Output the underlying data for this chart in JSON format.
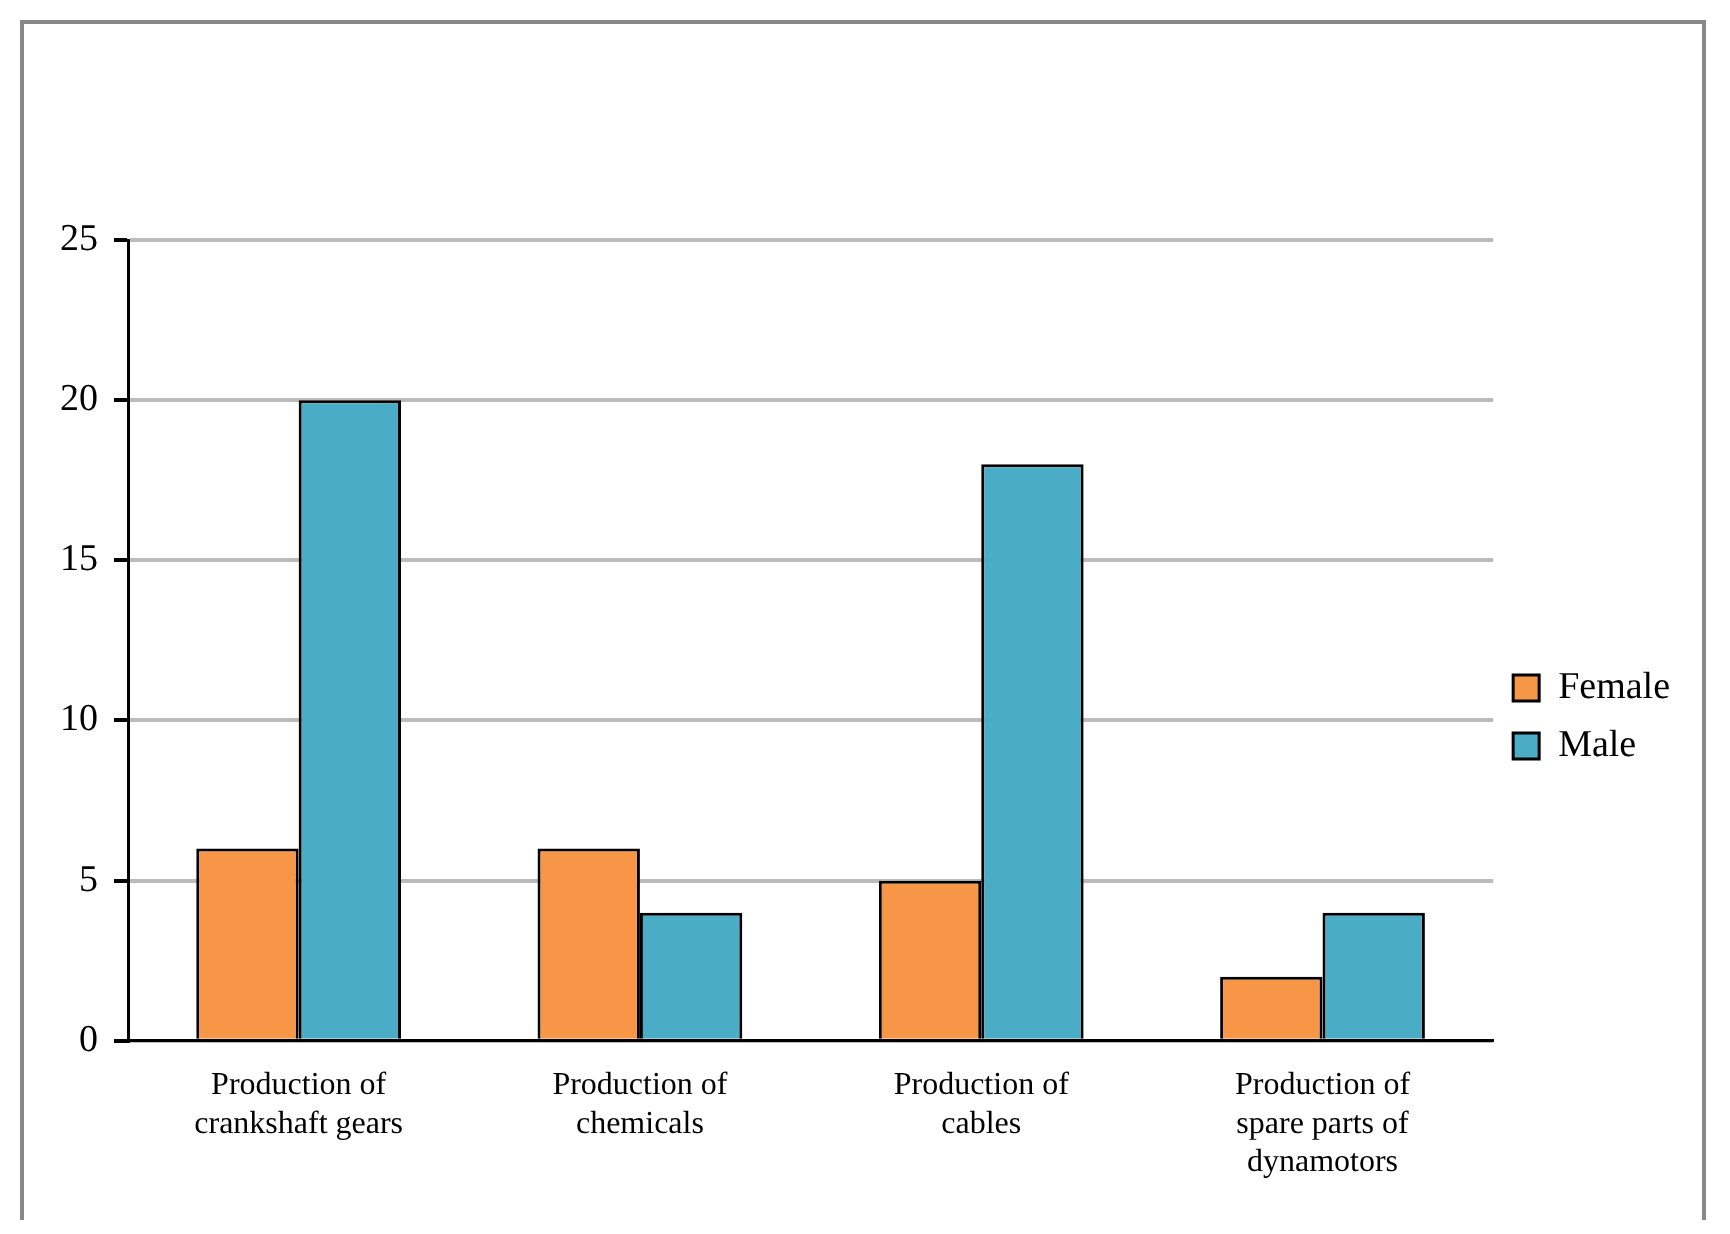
{
  "chart_data": {
    "type": "bar",
    "categories": [
      "Production of crankshaft gears",
      "Production of chemicals",
      "Production of cables",
      "Production of spare parts of dynamotors"
    ],
    "series": [
      {
        "name": "Female",
        "color": "#f79646",
        "values": [
          6,
          6,
          5,
          2
        ]
      },
      {
        "name": "Male",
        "color": "#4bacc6",
        "values": [
          20,
          4,
          18,
          4
        ]
      }
    ],
    "ylim": [
      0,
      25
    ],
    "yticks": [
      0,
      5,
      10,
      15,
      20,
      25
    ],
    "grid": "y",
    "legend": "right"
  }
}
